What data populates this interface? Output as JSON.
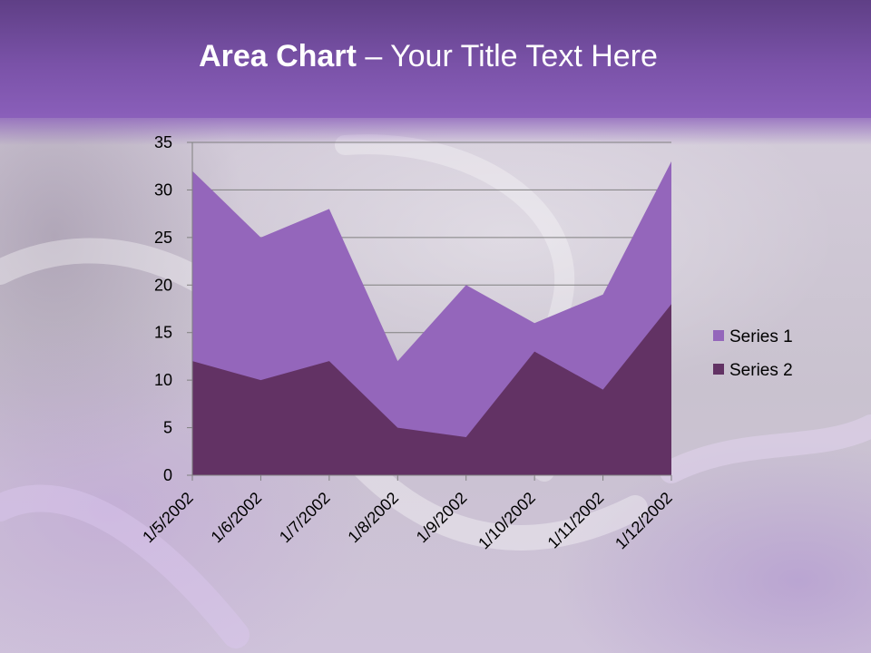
{
  "slide": {
    "title_bold": "Area Chart",
    "title_rest": " – Your Title Text Here"
  },
  "colors": {
    "series1": "#9466bb",
    "series2": "#623264",
    "header": "#7a52a8",
    "gridline": "#808080"
  },
  "chart_data": {
    "type": "area",
    "stacked": false,
    "categories": [
      "1/5/2002",
      "1/6/2002",
      "1/7/2002",
      "1/8/2002",
      "1/9/2002",
      "1/10/2002",
      "1/11/2002",
      "1/12/2002"
    ],
    "series": [
      {
        "name": "Series 1",
        "values": [
          32,
          25,
          28,
          12,
          20,
          16,
          19,
          33
        ]
      },
      {
        "name": "Series 2",
        "values": [
          12,
          10,
          12,
          5,
          4,
          13,
          9,
          18
        ]
      }
    ],
    "yticks": [
      "0",
      "5",
      "10",
      "15",
      "20",
      "25",
      "30",
      "35"
    ],
    "ylim": [
      0,
      35
    ],
    "grid": true,
    "legend_position": "right"
  }
}
